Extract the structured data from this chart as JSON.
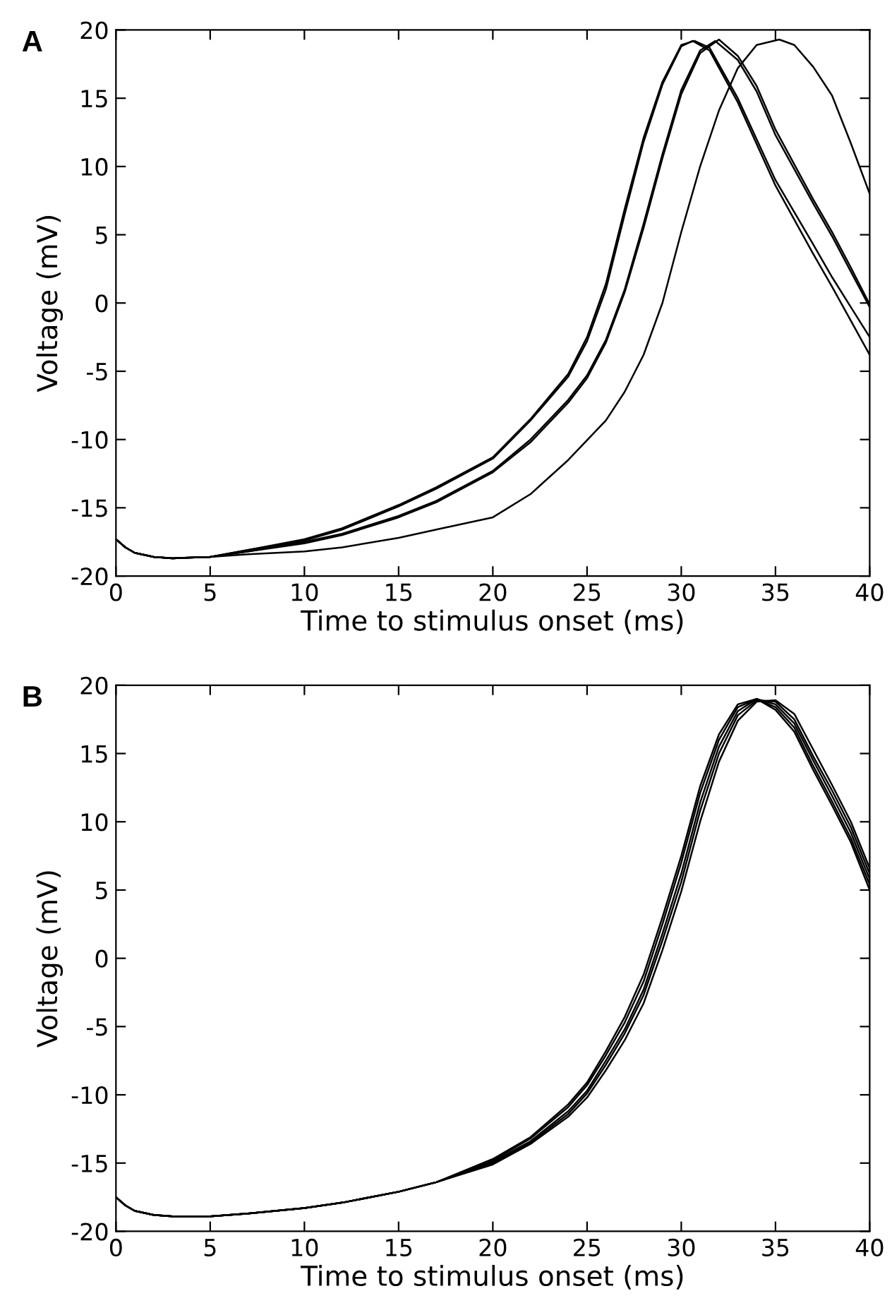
{
  "chart_data": [
    {
      "type": "line",
      "title": "A",
      "xlabel": "Time to stimulus onset (ms)",
      "ylabel": "Voltage (mV)",
      "xlim": [
        0,
        40
      ],
      "ylim": [
        -20,
        20
      ],
      "xticks": [
        0,
        5,
        10,
        15,
        20,
        25,
        30,
        35,
        40
      ],
      "yticks": [
        -20,
        -15,
        -10,
        -5,
        0,
        5,
        10,
        15,
        20
      ],
      "marker": "none",
      "line_style": "solid",
      "series": [
        {
          "color": "#000000",
          "x": [
            0,
            0.5,
            1,
            2,
            3,
            5,
            7,
            10,
            12,
            15,
            17,
            20,
            22,
            24,
            25,
            26,
            27,
            28,
            29,
            30,
            30.6,
            31.5,
            33,
            35,
            37,
            38,
            39,
            40
          ],
          "values": [
            -17.3,
            -17.9,
            -18.3,
            -18.6,
            -18.7,
            -18.6,
            -18.1,
            -17.4,
            -16.6,
            -14.9,
            -13.6,
            -11.4,
            -8.6,
            -5.4,
            -2.8,
            1.0,
            6.5,
            11.8,
            16.0,
            18.8,
            19.2,
            18.5,
            14.7,
            8.6,
            3.6,
            1.2,
            -1.3,
            -3.8
          ]
        },
        {
          "color": "#000000",
          "x": [
            0,
            0.5,
            1,
            2,
            3,
            5,
            7,
            10,
            12,
            15,
            17,
            20,
            22,
            24,
            25,
            26,
            27,
            28,
            29,
            30,
            30.7,
            31.5,
            33,
            35,
            37,
            38,
            39,
            40
          ],
          "values": [
            -17.3,
            -17.9,
            -18.3,
            -18.6,
            -18.7,
            -18.6,
            -18.1,
            -17.3,
            -16.5,
            -14.8,
            -13.5,
            -11.3,
            -8.5,
            -5.2,
            -2.5,
            1.4,
            6.9,
            12.1,
            16.2,
            18.9,
            19.2,
            18.7,
            15.0,
            9.0,
            4.3,
            1.9,
            -0.3,
            -2.5
          ]
        },
        {
          "color": "#000000",
          "x": [
            0,
            0.5,
            1,
            2,
            3,
            5,
            7,
            10,
            12,
            15,
            17,
            20,
            22,
            24,
            25,
            26,
            27,
            28,
            29,
            30,
            31,
            32,
            33,
            34,
            35,
            37,
            38,
            39,
            40
          ],
          "values": [
            -17.3,
            -17.9,
            -18.3,
            -18.6,
            -18.7,
            -18.6,
            -18.2,
            -17.6,
            -17.0,
            -15.7,
            -14.6,
            -12.4,
            -10.2,
            -7.3,
            -5.5,
            -2.9,
            0.8,
            5.5,
            10.6,
            15.3,
            18.3,
            19.3,
            18.1,
            15.9,
            12.7,
            7.6,
            5.2,
            2.6,
            -0.1
          ]
        },
        {
          "color": "#000000",
          "x": [
            0,
            0.5,
            1,
            2,
            3,
            5,
            7,
            10,
            12,
            15,
            17,
            20,
            22,
            24,
            25,
            26,
            27,
            28,
            29,
            30,
            31,
            31.8,
            33,
            34,
            35,
            37,
            38,
            39,
            40
          ],
          "values": [
            -17.3,
            -17.9,
            -18.3,
            -18.6,
            -18.7,
            -18.6,
            -18.2,
            -17.5,
            -16.9,
            -15.6,
            -14.5,
            -12.3,
            -10.0,
            -7.1,
            -5.3,
            -2.7,
            1.0,
            5.8,
            10.9,
            15.6,
            18.5,
            19.2,
            17.8,
            15.5,
            12.3,
            7.3,
            4.9,
            2.3,
            -0.3
          ]
        },
        {
          "color": "#000000",
          "x": [
            0,
            0.5,
            1,
            2,
            3,
            5,
            7,
            10,
            12,
            15,
            17,
            20,
            22,
            24,
            26,
            27,
            28,
            29,
            30,
            31,
            32,
            33,
            34,
            35.2,
            36,
            37,
            38,
            39,
            40
          ],
          "values": [
            -17.3,
            -17.9,
            -18.3,
            -18.6,
            -18.7,
            -18.6,
            -18.4,
            -18.2,
            -17.9,
            -17.2,
            -16.6,
            -15.7,
            -14.0,
            -11.5,
            -8.6,
            -6.5,
            -3.8,
            0.0,
            5.2,
            10.0,
            14.1,
            17.2,
            18.9,
            19.3,
            18.9,
            17.3,
            15.2,
            11.7,
            8.0
          ]
        }
      ]
    },
    {
      "type": "line",
      "title": "B",
      "xlabel": "Time to stimulus onset (ms)",
      "ylabel": "Voltage (mV)",
      "xlim": [
        0,
        40
      ],
      "ylim": [
        -20,
        20
      ],
      "xticks": [
        0,
        5,
        10,
        15,
        20,
        25,
        30,
        35,
        40
      ],
      "yticks": [
        -20,
        -15,
        -10,
        -5,
        0,
        5,
        10,
        15,
        20
      ],
      "marker": "none",
      "line_style": "solid",
      "x": [
        0,
        0.5,
        1,
        2,
        3,
        5,
        7,
        10,
        12,
        15,
        17,
        20,
        22,
        24,
        25,
        26,
        27,
        28,
        29,
        30,
        31,
        32,
        33,
        34,
        35,
        36,
        37,
        38,
        39,
        40
      ],
      "series": [
        {
          "color": "#000000",
          "values": [
            -17.5,
            -18.1,
            -18.5,
            -18.8,
            -18.9,
            -18.9,
            -18.7,
            -18.3,
            -17.9,
            -17.1,
            -16.4,
            -14.7,
            -13.1,
            -10.7,
            -9.1,
            -6.8,
            -4.3,
            -1.2,
            3.0,
            7.5,
            12.6,
            16.4,
            18.6,
            19.0,
            18.2,
            16.6,
            13.8,
            11.2,
            8.5,
            5.0
          ]
        },
        {
          "color": "#000000",
          "values": [
            -17.5,
            -18.1,
            -18.5,
            -18.8,
            -18.9,
            -18.9,
            -18.7,
            -18.3,
            -17.9,
            -17.1,
            -16.4,
            -14.8,
            -13.2,
            -10.9,
            -9.3,
            -7.1,
            -4.7,
            -1.7,
            2.5,
            7.0,
            12.1,
            16.0,
            18.4,
            19.0,
            18.4,
            16.9,
            14.1,
            11.5,
            8.8,
            5.4
          ]
        },
        {
          "color": "#000000",
          "values": [
            -17.5,
            -18.1,
            -18.5,
            -18.8,
            -18.9,
            -18.9,
            -18.7,
            -18.3,
            -17.9,
            -17.1,
            -16.4,
            -14.9,
            -13.4,
            -11.2,
            -9.7,
            -7.5,
            -5.2,
            -2.3,
            1.8,
            6.2,
            11.4,
            15.5,
            18.1,
            19.0,
            18.6,
            17.2,
            14.5,
            11.9,
            9.2,
            5.8
          ]
        },
        {
          "color": "#000000",
          "values": [
            -17.5,
            -18.1,
            -18.5,
            -18.8,
            -18.9,
            -18.9,
            -18.7,
            -18.3,
            -17.9,
            -17.1,
            -16.4,
            -15.0,
            -13.5,
            -11.4,
            -9.9,
            -7.8,
            -5.5,
            -2.7,
            1.3,
            5.6,
            10.8,
            15.0,
            17.8,
            18.9,
            18.8,
            17.5,
            14.8,
            12.3,
            9.6,
            6.2
          ]
        },
        {
          "color": "#000000",
          "values": [
            -17.5,
            -18.1,
            -18.5,
            -18.8,
            -18.9,
            -18.9,
            -18.7,
            -18.3,
            -17.9,
            -17.1,
            -16.4,
            -15.1,
            -13.6,
            -11.6,
            -10.2,
            -8.2,
            -6.0,
            -3.3,
            0.6,
            4.9,
            10.0,
            14.4,
            17.4,
            18.8,
            18.9,
            17.9,
            15.3,
            12.7,
            10.0,
            6.6
          ]
        }
      ]
    }
  ]
}
